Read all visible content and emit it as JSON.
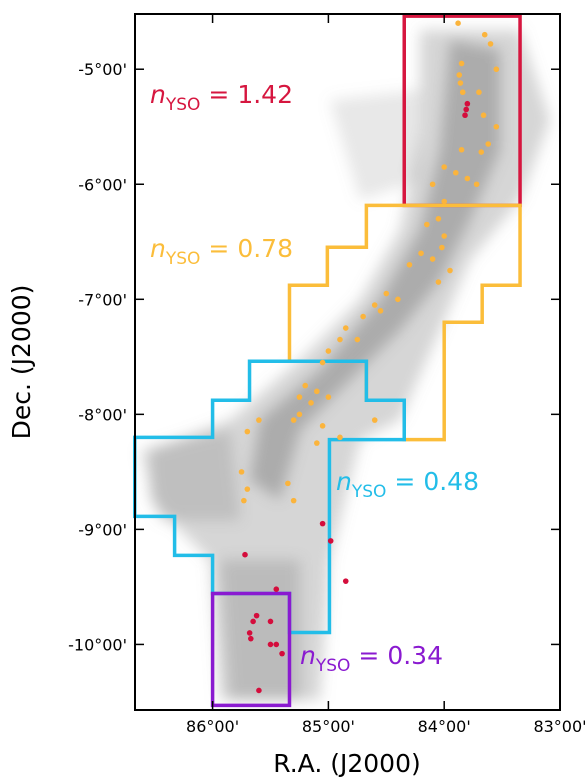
{
  "chart_data": {
    "type": "scatter",
    "x_label": "R.A. (J2000)",
    "y_label": "Dec. (J2000)",
    "xlim": [
      86.67,
      83.0
    ],
    "ylim": [
      -10.57,
      -4.52
    ],
    "xticks": [
      {
        "value": 86,
        "label": "86°00'"
      },
      {
        "value": 85,
        "label": "85°00'"
      },
      {
        "value": 84,
        "label": "84°00'"
      },
      {
        "value": 83,
        "label": "83°00'"
      }
    ],
    "yticks": [
      {
        "value": -5,
        "label": "-5°00'"
      },
      {
        "value": -6,
        "label": "-6°00'"
      },
      {
        "value": -7,
        "label": "-7°00'"
      },
      {
        "value": -8,
        "label": "-8°00'"
      },
      {
        "value": -9,
        "label": "-9°00'"
      },
      {
        "value": -10,
        "label": "-10°00'"
      }
    ],
    "series": [
      {
        "color": "#fbb43c",
        "x": [
          83.88,
          83.85,
          83.87,
          83.86,
          83.84,
          83.65,
          83.6,
          83.55,
          83.7,
          83.66,
          83.55,
          83.62,
          83.68,
          83.85,
          83.9,
          83.8,
          83.72,
          84.0,
          84.1,
          84.0,
          84.05,
          84.15,
          84.0,
          84.02,
          84.2,
          84.3,
          84.1,
          83.95,
          84.05,
          84.4,
          84.5,
          84.6,
          84.55,
          84.7,
          84.85,
          84.9,
          84.75,
          85.0,
          85.05,
          85.2,
          85.25,
          85.15,
          85.25,
          85.3,
          85.1,
          85.0,
          85.05,
          84.9,
          85.1,
          84.6,
          85.6,
          85.7,
          85.75,
          85.7,
          85.73,
          85.35,
          85.3
        ],
        "y": [
          -4.6,
          -4.95,
          -5.05,
          -5.12,
          -5.2,
          -4.7,
          -4.78,
          -5.0,
          -5.2,
          -5.4,
          -5.5,
          -5.65,
          -5.72,
          -5.7,
          -5.9,
          -5.95,
          -6.0,
          -5.85,
          -6.0,
          -6.15,
          -6.3,
          -6.35,
          -6.45,
          -6.55,
          -6.6,
          -6.7,
          -6.65,
          -6.75,
          -6.85,
          -7.0,
          -6.95,
          -7.05,
          -7.1,
          -7.15,
          -7.25,
          -7.35,
          -7.35,
          -7.45,
          -7.55,
          -7.75,
          -7.85,
          -7.9,
          -8.0,
          -8.05,
          -7.8,
          -7.85,
          -8.1,
          -8.2,
          -8.25,
          -8.05,
          -8.05,
          -8.15,
          -8.5,
          -8.65,
          -8.75,
          -8.6,
          -8.75
        ]
      },
      {
        "color": "#d40d3c",
        "x": [
          83.8,
          83.82,
          83.81,
          85.05,
          84.98,
          85.72,
          84.85,
          85.45,
          85.62,
          85.65,
          85.68,
          85.67,
          85.5,
          85.45,
          85.5,
          85.4,
          85.6
        ],
        "y": [
          -5.3,
          -5.4,
          -5.35,
          -8.95,
          -9.1,
          -9.22,
          -9.45,
          -9.52,
          -9.75,
          -9.8,
          -9.9,
          -9.95,
          -9.8,
          -10.0,
          -10.0,
          -10.08,
          -10.4
        ]
      }
    ],
    "regions": [
      {
        "color": "#d6163f",
        "label": [
          "n",
          "YSO",
          "= 1.42"
        ],
        "x": [
          84.345,
          83.345,
          83.345,
          84.345
        ],
        "y": [
          -4.539,
          -4.539,
          -6.183,
          -6.183
        ]
      },
      {
        "color": "#fbbd3a",
        "label": [
          "n",
          "YSO",
          "= 0.78"
        ],
        "x": [
          84.345,
          83.345,
          83.345,
          83.672,
          83.672,
          84.0,
          84.0,
          84.345,
          84.345,
          84.672,
          84.672,
          85.336,
          85.336,
          85.009,
          85.009,
          84.672,
          84.672
        ],
        "y": [
          -6.183,
          -6.183,
          -6.878,
          -6.878,
          -7.2,
          -7.2,
          -8.22,
          -8.22,
          -7.878,
          -7.878,
          -7.539,
          -7.539,
          -6.878,
          -6.878,
          -6.548,
          -6.548,
          -6.183
        ]
      },
      {
        "color": "#22bde8",
        "label": [
          "n",
          "YSO",
          "= 0.48"
        ],
        "x": [
          85.681,
          84.672,
          84.672,
          84.345,
          84.345,
          84.991,
          84.991,
          85.336,
          85.336,
          86.0,
          86.0,
          86.328,
          86.328,
          86.672,
          86.672,
          86.0,
          86.0,
          85.681
        ],
        "y": [
          -7.539,
          -7.539,
          -7.878,
          -7.878,
          -8.22,
          -8.22,
          -9.896,
          -9.896,
          -9.557,
          -9.557,
          -9.226,
          -9.226,
          -8.887,
          -8.887,
          -8.2,
          -8.2,
          -7.878,
          -7.878
        ]
      },
      {
        "color": "#8a1ad0",
        "label": [
          "n",
          "YSO",
          "= 0.34"
        ],
        "x": [
          86.0,
          85.336,
          85.336,
          86.0
        ],
        "y": [
          -9.557,
          -9.557,
          -10.53,
          -10.53
        ]
      }
    ]
  }
}
